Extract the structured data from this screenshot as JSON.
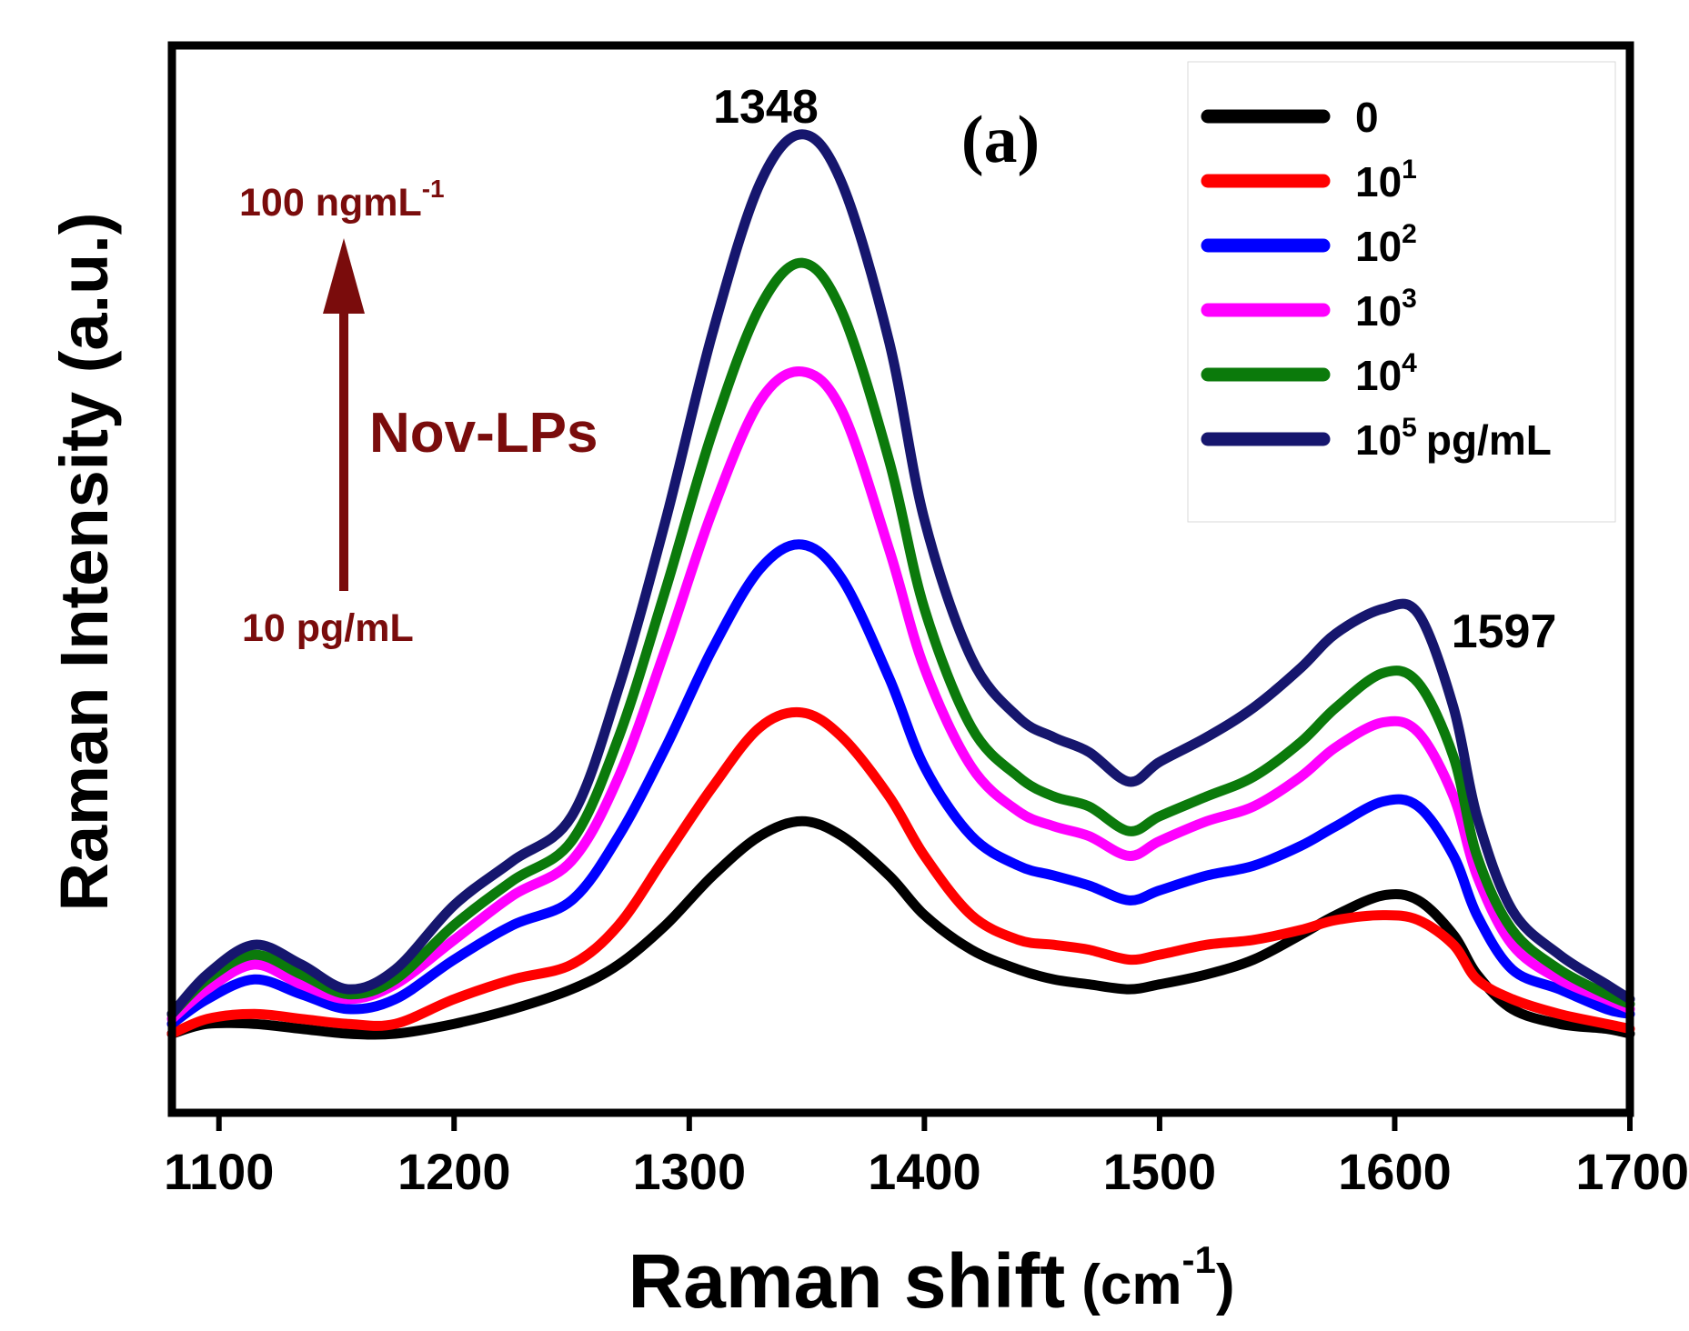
{
  "chart_data": {
    "type": "line",
    "panel_label": "(a)",
    "xlabel": "Raman shift",
    "xlabel_unit_open": "(cm",
    "xlabel_unit_exp": "-1",
    "xlabel_unit_close": ")",
    "ylabel": "Raman Intensity (a.u.)",
    "xlim": [
      1080,
      1700
    ],
    "ylim": [
      -0.08,
      1.0
    ],
    "x_ticks": [
      1100,
      1200,
      1300,
      1400,
      1500,
      1600,
      1700
    ],
    "y_tick_labels_shown": false,
    "grid": false,
    "legend_position": "top-right",
    "legend_unit": "pg/mL",
    "peak_annotations": [
      {
        "label": "1348",
        "x": 1348
      },
      {
        "label": "1597",
        "x": 1597
      }
    ],
    "arrow_annotation": {
      "top_text": "100 ngmL",
      "top_exp": "-1",
      "middle_text": "Nov-LPs",
      "bottom_text": "10 pg/mL",
      "color": "#7a0c0c"
    },
    "x": [
      1080,
      1095,
      1115,
      1135,
      1155,
      1175,
      1200,
      1225,
      1250,
      1270,
      1290,
      1310,
      1330,
      1348,
      1365,
      1385,
      1400,
      1420,
      1440,
      1455,
      1470,
      1487,
      1500,
      1520,
      1540,
      1560,
      1575,
      1595,
      1610,
      1625,
      1635,
      1650,
      1670,
      1690,
      1700
    ],
    "series": [
      {
        "name": "0",
        "base": "10",
        "exp": "",
        "color": "#000000",
        "values": [
          0.0,
          0.01,
          0.01,
          0.005,
          0.0,
          0.0,
          0.01,
          0.025,
          0.045,
          0.07,
          0.11,
          0.16,
          0.2,
          0.215,
          0.2,
          0.16,
          0.12,
          0.085,
          0.065,
          0.055,
          0.05,
          0.045,
          0.05,
          0.06,
          0.075,
          0.1,
          0.12,
          0.14,
          0.135,
          0.1,
          0.06,
          0.025,
          0.01,
          0.005,
          0.0
        ]
      },
      {
        "name": "10",
        "base": "10",
        "exp": "1",
        "color": "#ff0000",
        "values": [
          0.0,
          0.015,
          0.02,
          0.015,
          0.01,
          0.01,
          0.035,
          0.055,
          0.07,
          0.11,
          0.18,
          0.25,
          0.31,
          0.325,
          0.3,
          0.24,
          0.18,
          0.12,
          0.095,
          0.09,
          0.085,
          0.075,
          0.08,
          0.09,
          0.095,
          0.105,
          0.115,
          0.12,
          0.115,
          0.09,
          0.055,
          0.035,
          0.02,
          0.01,
          0.005
        ]
      },
      {
        "name": "10",
        "base": "10",
        "exp": "2",
        "color": "#0000ff",
        "values": [
          0.01,
          0.035,
          0.055,
          0.04,
          0.025,
          0.035,
          0.075,
          0.11,
          0.135,
          0.2,
          0.29,
          0.39,
          0.47,
          0.495,
          0.46,
          0.36,
          0.27,
          0.2,
          0.17,
          0.16,
          0.15,
          0.135,
          0.145,
          0.16,
          0.17,
          0.19,
          0.21,
          0.235,
          0.23,
          0.18,
          0.12,
          0.065,
          0.045,
          0.025,
          0.02
        ]
      },
      {
        "name": "10",
        "base": "10",
        "exp": "3",
        "color": "#ff00ff",
        "values": [
          0.015,
          0.045,
          0.07,
          0.05,
          0.035,
          0.05,
          0.095,
          0.14,
          0.175,
          0.26,
          0.39,
          0.53,
          0.64,
          0.67,
          0.63,
          0.49,
          0.37,
          0.27,
          0.225,
          0.21,
          0.2,
          0.18,
          0.195,
          0.215,
          0.23,
          0.26,
          0.29,
          0.315,
          0.305,
          0.24,
          0.16,
          0.09,
          0.055,
          0.035,
          0.025
        ]
      },
      {
        "name": "10",
        "base": "10",
        "exp": "4",
        "color": "#0b7a0b",
        "values": [
          0.02,
          0.055,
          0.08,
          0.06,
          0.04,
          0.055,
          0.11,
          0.155,
          0.195,
          0.3,
          0.45,
          0.61,
          0.735,
          0.78,
          0.73,
          0.58,
          0.43,
          0.31,
          0.26,
          0.24,
          0.23,
          0.205,
          0.22,
          0.24,
          0.26,
          0.295,
          0.33,
          0.365,
          0.355,
          0.28,
          0.18,
          0.105,
          0.065,
          0.04,
          0.03
        ]
      },
      {
        "name": "10 pg/mL",
        "base": "10",
        "exp": "5",
        "color": "#16166e",
        "values": [
          0.02,
          0.06,
          0.09,
          0.07,
          0.045,
          0.065,
          0.13,
          0.175,
          0.22,
          0.35,
          0.52,
          0.71,
          0.86,
          0.91,
          0.86,
          0.7,
          0.52,
          0.38,
          0.32,
          0.3,
          0.285,
          0.255,
          0.275,
          0.3,
          0.33,
          0.37,
          0.405,
          0.43,
          0.425,
          0.33,
          0.22,
          0.125,
          0.08,
          0.05,
          0.035
        ]
      }
    ]
  }
}
